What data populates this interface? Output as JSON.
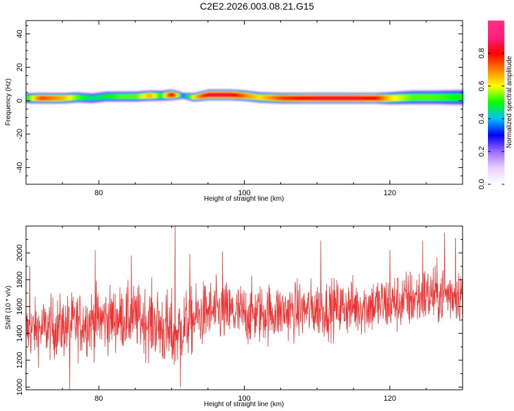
{
  "title": "C2E2.2026.003.08.21.G15",
  "colors": {
    "snr_line": "#ee3333",
    "colormap": [
      "#ffffff",
      "#e8d0ff",
      "#9b6bff",
      "#0000ff",
      "#00bfff",
      "#00ff00",
      "#ffff00",
      "#ff8000",
      "#ff0000",
      "#ff2080",
      "#ff3080"
    ]
  },
  "chart_data": [
    {
      "type": "heatmap",
      "xlabel": "Height of straight line (km)",
      "ylabel": "Frequency (Hz)",
      "xlim": [
        70,
        130
      ],
      "ylim": [
        -50,
        48
      ],
      "x_ticks": [
        80,
        100,
        120
      ],
      "y_ticks": [
        40,
        20,
        0,
        -20,
        -40
      ],
      "colorbar": {
        "label": "Normalized spectral amplitude",
        "range": [
          0,
          1
        ],
        "ticks": [
          0.0,
          0.2,
          0.4,
          0.6,
          0.8
        ]
      },
      "band": [
        {
          "x": 70,
          "center": 1.5,
          "halfwidth": 3.0,
          "peak": 0.55
        },
        {
          "x": 72,
          "center": 1.5,
          "halfwidth": 3.0,
          "peak": 0.85
        },
        {
          "x": 75,
          "center": 1.5,
          "halfwidth": 3.0,
          "peak": 0.75
        },
        {
          "x": 77,
          "center": 2.0,
          "halfwidth": 3.0,
          "peak": 0.6
        },
        {
          "x": 79,
          "center": 1.5,
          "halfwidth": 3.0,
          "peak": 0.5
        },
        {
          "x": 81,
          "center": 2.5,
          "halfwidth": 3.0,
          "peak": 0.55
        },
        {
          "x": 83,
          "center": 2.5,
          "halfwidth": 3.0,
          "peak": 0.6
        },
        {
          "x": 85,
          "center": 2.5,
          "halfwidth": 3.0,
          "peak": 0.6
        },
        {
          "x": 87,
          "center": 3.0,
          "halfwidth": 3.0,
          "peak": 0.75
        },
        {
          "x": 88.5,
          "center": 3.0,
          "halfwidth": 3.0,
          "peak": 0.55
        },
        {
          "x": 90,
          "center": 3.5,
          "halfwidth": 3.0,
          "peak": 0.95
        },
        {
          "x": 91.5,
          "center": 3.0,
          "halfwidth": 2.0,
          "peak": 0.4
        },
        {
          "x": 93,
          "center": 2.0,
          "halfwidth": 2.5,
          "peak": 0.7
        },
        {
          "x": 95,
          "center": 3.5,
          "halfwidth": 3.0,
          "peak": 0.95
        },
        {
          "x": 98,
          "center": 3.5,
          "halfwidth": 3.0,
          "peak": 0.95
        },
        {
          "x": 100,
          "center": 3.0,
          "halfwidth": 3.0,
          "peak": 0.8
        },
        {
          "x": 102,
          "center": 2.0,
          "halfwidth": 3.0,
          "peak": 0.7
        },
        {
          "x": 105,
          "center": 1.5,
          "halfwidth": 3.0,
          "peak": 0.85
        },
        {
          "x": 110,
          "center": 1.5,
          "halfwidth": 3.0,
          "peak": 0.95
        },
        {
          "x": 115,
          "center": 1.5,
          "halfwidth": 3.0,
          "peak": 0.95
        },
        {
          "x": 118,
          "center": 1.5,
          "halfwidth": 3.0,
          "peak": 0.9
        },
        {
          "x": 120,
          "center": 1.5,
          "halfwidth": 3.5,
          "peak": 0.7
        },
        {
          "x": 123,
          "center": 2.0,
          "halfwidth": 4.0,
          "peak": 0.6
        },
        {
          "x": 126,
          "center": 2.0,
          "halfwidth": 4.0,
          "peak": 0.6
        },
        {
          "x": 130,
          "center": 2.0,
          "halfwidth": 4.5,
          "peak": 0.55
        }
      ]
    },
    {
      "type": "line",
      "xlabel": "Height of straight line (km)",
      "ylabel": "SNR (10 * v/v)",
      "xlim": [
        70,
        130
      ],
      "ylim": [
        980,
        2200
      ],
      "x_ticks": [
        80,
        100,
        120
      ],
      "y_ticks": [
        1000,
        1200,
        1400,
        1600,
        1800,
        2000
      ],
      "series": [
        {
          "trend": [
            {
              "x": 70,
              "mean": 1420,
              "spread": 200
            },
            {
              "x": 75,
              "mean": 1450,
              "spread": 220
            },
            {
              "x": 80,
              "mean": 1500,
              "spread": 230
            },
            {
              "x": 85,
              "mean": 1520,
              "spread": 220
            },
            {
              "x": 88,
              "mean": 1470,
              "spread": 260
            },
            {
              "x": 90,
              "mean": 1380,
              "spread": 300
            },
            {
              "x": 92,
              "mean": 1470,
              "spread": 240
            },
            {
              "x": 95,
              "mean": 1560,
              "spread": 220
            },
            {
              "x": 100,
              "mean": 1540,
              "spread": 220
            },
            {
              "x": 105,
              "mean": 1560,
              "spread": 200
            },
            {
              "x": 110,
              "mean": 1580,
              "spread": 200
            },
            {
              "x": 115,
              "mean": 1600,
              "spread": 200
            },
            {
              "x": 120,
              "mean": 1620,
              "spread": 210
            },
            {
              "x": 125,
              "mean": 1680,
              "spread": 210
            },
            {
              "x": 130,
              "mean": 1700,
              "spread": 200
            }
          ],
          "peaks": [
            {
              "x": 70.5,
              "y": 1900
            },
            {
              "x": 76.0,
              "y": 980
            },
            {
              "x": 79.5,
              "y": 2020
            },
            {
              "x": 84.5,
              "y": 1980
            },
            {
              "x": 90.5,
              "y": 2200
            },
            {
              "x": 91.2,
              "y": 1000
            },
            {
              "x": 92.5,
              "y": 1990
            },
            {
              "x": 97.0,
              "y": 2010
            },
            {
              "x": 110.5,
              "y": 2090
            },
            {
              "x": 120.0,
              "y": 2020
            },
            {
              "x": 124.5,
              "y": 2090
            },
            {
              "x": 127.5,
              "y": 2150
            },
            {
              "x": 129.0,
              "y": 2110
            }
          ]
        }
      ]
    }
  ]
}
